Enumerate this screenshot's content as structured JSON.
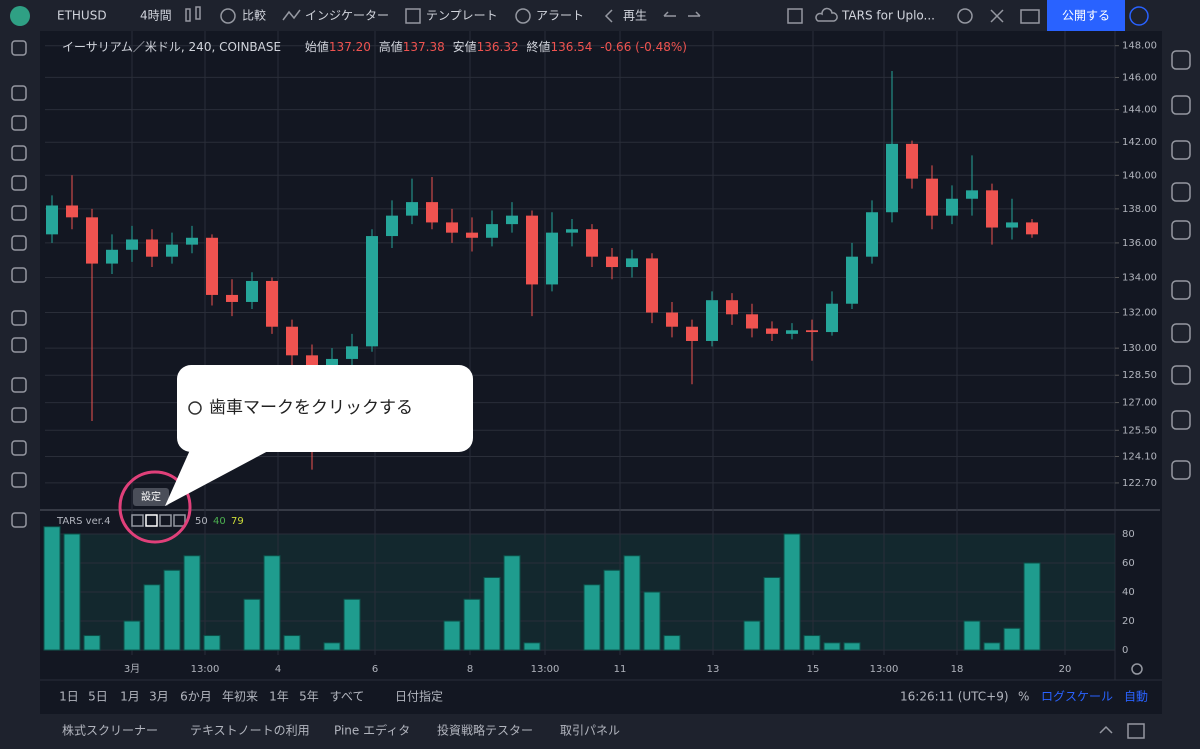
{
  "toolbar": {
    "symbol": "ETHUSD",
    "interval": "4時間",
    "compare": "比較",
    "indicators": "インジケーター",
    "templates": "テンプレート",
    "alert": "アラート",
    "replay": "再生",
    "layout": "TARS for Uplo...",
    "publish": "公開する"
  },
  "legend": {
    "title": "イーサリアム／米ドル, 240, COINBASE",
    "open_label": "始値",
    "open": "137.20",
    "high_label": "高値",
    "high": "137.38",
    "low_label": "安値",
    "low": "136.32",
    "close_label": "終値",
    "close": "136.54",
    "change": "-0.66 (-0.48%)"
  },
  "indicator_legend": {
    "name": "TARS ver.4",
    "values": [
      "50",
      "40",
      "79"
    ]
  },
  "tooltip": "設定",
  "callout": "歯車マークをクリックする",
  "time_axis": [
    "3月",
    "13:00",
    "4",
    "6",
    "8",
    "13:00",
    "11",
    "13",
    "15",
    "13:00",
    "18",
    "20"
  ],
  "ranges": [
    "1日",
    "5日",
    "1月",
    "3月",
    "6か月",
    "年初来",
    "1年",
    "5年",
    "すべて"
  ],
  "date_range": "日付指定",
  "clock": "16:26:11 (UTC+9)",
  "percent": "%",
  "log_scale": "ログスケール",
  "auto": "自動",
  "tabs": [
    "株式スクリーナー",
    "テキストノートの利用",
    "Pine エディタ",
    "投資戦略テスター",
    "取引パネル"
  ],
  "chart_data": [
    {
      "type": "candlestick",
      "log_scale": true,
      "grid": true,
      "up_color": "#26a69a",
      "down_color": "#ef5350",
      "ylim": [
        121.44,
        149.0
      ],
      "yticks": [
        {
          "value": 148,
          "label": "148.00"
        },
        {
          "value": 146,
          "label": "146.00"
        },
        {
          "value": 144,
          "label": "144.00"
        },
        {
          "value": 142,
          "label": "142.00"
        },
        {
          "value": 140,
          "label": "140.00"
        },
        {
          "value": 138,
          "label": "138.00"
        },
        {
          "value": 136,
          "label": "136.00"
        },
        {
          "value": 134,
          "label": "134.00"
        },
        {
          "value": 132,
          "label": "132.00"
        },
        {
          "value": 130,
          "label": "130.00"
        },
        {
          "value": 128.5,
          "label": "128.50"
        },
        {
          "value": 127,
          "label": "127.00"
        },
        {
          "value": 125.5,
          "label": "125.50"
        },
        {
          "value": 124.1,
          "label": "124.10"
        },
        {
          "value": 122.7,
          "label": "122.70"
        }
      ],
      "open": [
        136.5,
        138.2,
        137.5,
        134.8,
        135.6,
        136.2,
        135.2,
        135.9,
        136.3,
        133,
        132.6,
        133.8,
        131.2,
        129.6,
        128.8,
        129.4,
        130.1,
        136.4,
        137.6,
        138.4,
        137.2,
        136.6,
        136.3,
        137.1,
        137.6,
        133.6,
        136.6,
        136.8,
        135.2,
        134.6,
        135.1,
        132,
        131.2,
        130.4,
        132.7,
        131.9,
        131.1,
        130.8,
        131,
        130.9,
        132.5,
        135.2,
        137.8,
        141.9,
        139.8,
        137.6,
        138.6,
        139.1,
        136.9,
        137.2
      ],
      "high": [
        138.8,
        140,
        138,
        136.5,
        137,
        136.8,
        136.6,
        137,
        136.5,
        133.9,
        134.3,
        134,
        131.6,
        130.2,
        130,
        130.8,
        136.8,
        138.5,
        139.8,
        139.9,
        138,
        137.5,
        137.9,
        138.4,
        137.9,
        137.8,
        137.4,
        137.1,
        135.7,
        135.6,
        135.4,
        132.6,
        131.6,
        133.2,
        133.1,
        132.5,
        131.5,
        131.4,
        131.6,
        133.2,
        136,
        138.5,
        146.4,
        142.1,
        140.6,
        139.4,
        141.2,
        139.5,
        138.6,
        137.4
      ],
      "low": [
        136,
        136.8,
        126,
        134.2,
        134.9,
        134.6,
        134.8,
        135.4,
        132.4,
        131.8,
        132.2,
        130.8,
        128.6,
        123.4,
        128.3,
        128.9,
        129.8,
        135.7,
        137.1,
        136.8,
        136,
        135.5,
        135.8,
        136.6,
        131.8,
        133.2,
        135.8,
        134.6,
        133.9,
        134,
        131.4,
        130.6,
        128,
        130.1,
        131.3,
        130.6,
        130.4,
        130.5,
        129.3,
        130.7,
        132.2,
        134.8,
        137.2,
        139.2,
        136.8,
        137.1,
        137.6,
        135.9,
        136.2,
        136.3
      ],
      "close": [
        138.2,
        137.5,
        134.8,
        135.6,
        136.2,
        135.2,
        135.9,
        136.3,
        133,
        132.6,
        133.8,
        131.2,
        129.6,
        128.8,
        129.4,
        130.1,
        136.4,
        137.6,
        138.4,
        137.2,
        136.6,
        136.3,
        137.1,
        137.6,
        133.6,
        136.6,
        136.8,
        135.2,
        134.6,
        135.1,
        132,
        131.2,
        130.4,
        132.7,
        131.9,
        131.1,
        130.8,
        131,
        130.9,
        132.5,
        135.2,
        137.8,
        141.9,
        139.8,
        137.6,
        138.6,
        139.1,
        136.9,
        137.2,
        136.5
      ]
    },
    {
      "type": "bar",
      "color": "#1f9c8e",
      "grid": true,
      "ylim": [
        -3.4,
        91
      ],
      "yticks": [
        0,
        20,
        40,
        60,
        80
      ],
      "values": [
        85,
        80,
        10,
        0,
        20,
        45,
        55,
        65,
        10,
        0,
        35,
        65,
        10,
        0,
        5,
        35,
        0,
        0,
        0,
        0,
        20,
        35,
        50,
        65,
        5,
        0,
        0,
        45,
        55,
        65,
        40,
        10,
        0,
        0,
        0,
        20,
        50,
        80,
        10,
        5,
        5,
        0,
        0,
        0,
        0,
        0,
        20,
        5,
        15,
        60
      ]
    }
  ]
}
